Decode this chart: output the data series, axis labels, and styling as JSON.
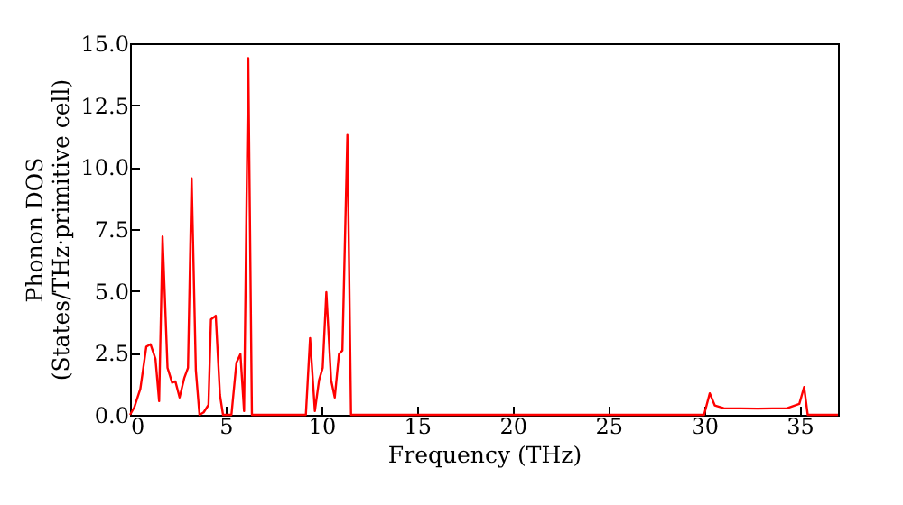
{
  "chart_data": {
    "type": "line",
    "xlabel": "Frequency (THz)",
    "ylabel": "Phonon DOS\n(States/THz·primitive cell)",
    "x": [
      0,
      0.22,
      0.54,
      0.85,
      1.07,
      1.33,
      1.52,
      1.7,
      1.96,
      2.2,
      2.37,
      2.59,
      2.84,
      3.03,
      3.22,
      3.44,
      3.63,
      3.85,
      4.1,
      4.23,
      4.48,
      4.7,
      4.86,
      5.3,
      5.56,
      5.77,
      5.96,
      6.18,
      6.37,
      9.19,
      9.41,
      9.66,
      9.88,
      10.07,
      10.26,
      10.51,
      10.7,
      10.92,
      11.1,
      11.36,
      11.55,
      30.0,
      30.3,
      30.56,
      31.03,
      32.8,
      34.35,
      34.98,
      35.23,
      35.42,
      37
    ],
    "series": [
      {
        "color": "#ff0000",
        "values": [
          0,
          0.3,
          1.05,
          2.75,
          2.85,
          2.25,
          0.55,
          7.2,
          1.9,
          1.3,
          1.35,
          0.7,
          1.5,
          1.9,
          9.55,
          1.8,
          0,
          0.1,
          0.4,
          3.85,
          4.0,
          0.8,
          0,
          0,
          2.1,
          2.45,
          0.15,
          14.4,
          0,
          0,
          3.1,
          0.15,
          1.4,
          1.9,
          4.95,
          1.4,
          0.7,
          2.45,
          2.6,
          11.3,
          0,
          0,
          0.87,
          0.38,
          0.27,
          0.25,
          0.27,
          0.44,
          1.12,
          0,
          0
        ]
      }
    ],
    "xlim": [
      0,
      37
    ],
    "ylim": [
      0,
      15
    ],
    "xticks": [
      0,
      5,
      10,
      15,
      20,
      25,
      30,
      35
    ],
    "yticks": [
      {
        "value": 0,
        "label": "0.0"
      },
      {
        "value": 2.5,
        "label": "2.5"
      },
      {
        "value": 5,
        "label": "5.0"
      },
      {
        "value": 7.5,
        "label": "7.5"
      },
      {
        "value": 10,
        "label": "10.0"
      },
      {
        "value": 12.5,
        "label": "12.5"
      },
      {
        "value": 15,
        "label": "15.0"
      }
    ],
    "grid": false,
    "marker": "none",
    "line_style": "solid"
  }
}
